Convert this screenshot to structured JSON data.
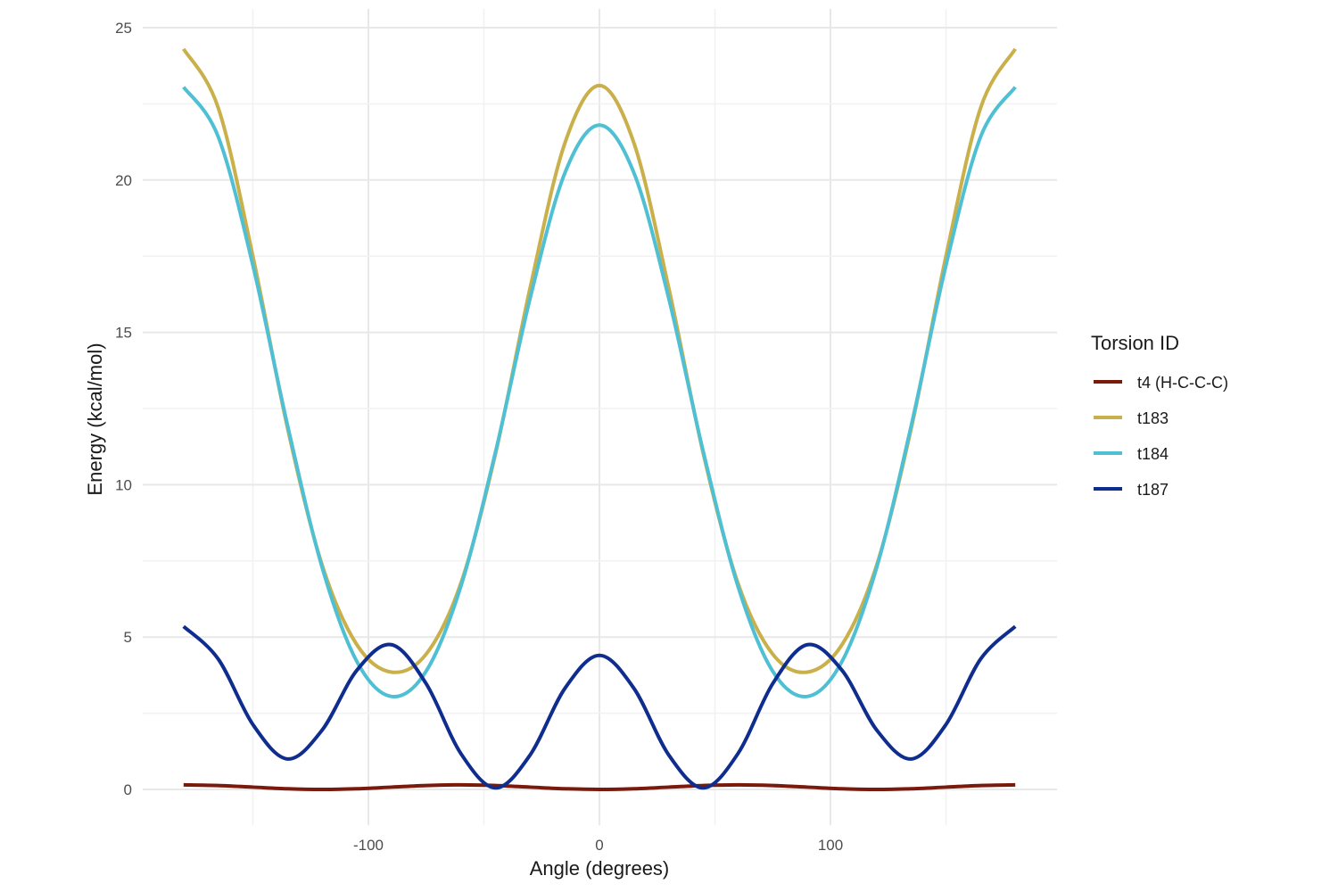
{
  "chart_data": {
    "type": "line",
    "title": "",
    "xlabel": "Angle (degrees)",
    "ylabel": "Energy (kcal/mol)",
    "xlim": [
      -180,
      180
    ],
    "ylim": [
      0,
      25
    ],
    "x_ticks": [
      -100,
      0,
      100
    ],
    "x_tick_labels": [
      "-100",
      "0",
      "100"
    ],
    "y_ticks": [
      0,
      5,
      10,
      15,
      20,
      25
    ],
    "y_tick_labels": [
      "0",
      "5",
      "10",
      "15",
      "20",
      "25"
    ],
    "grid": true,
    "legend": {
      "title": "Torsion ID",
      "placement": "right"
    },
    "x": [
      -180,
      -165,
      -150,
      -135,
      -120,
      -105,
      -90,
      -75,
      -60,
      -45,
      -30,
      -15,
      0,
      15,
      30,
      45,
      60,
      75,
      90,
      105,
      120,
      135,
      150,
      165,
      180
    ],
    "series": [
      {
        "name": "t4 (H-C-C-C)",
        "color": "#7a1a0c",
        "values": [
          0.15,
          0.128,
          0.075,
          0.022,
          0,
          0.022,
          0.075,
          0.128,
          0.15,
          0.128,
          0.075,
          0.022,
          0,
          0.022,
          0.075,
          0.128,
          0.15,
          0.128,
          0.075,
          0.022,
          0,
          0.022,
          0.075,
          0.128,
          0.15
        ]
      },
      {
        "name": "t183",
        "color": "#c9b04a",
        "values": [
          24.3,
          22.37,
          17.5,
          11.86,
          7.36,
          4.75,
          3.85,
          4.44,
          6.76,
          11.01,
          16.46,
          21.2,
          23.1,
          21.2,
          16.46,
          11.01,
          6.76,
          4.44,
          3.85,
          4.75,
          7.36,
          11.86,
          17.5,
          22.37,
          24.3
        ]
      },
      {
        "name": "t184",
        "color": "#4fbfd3",
        "values": [
          23.05,
          21.42,
          17.2,
          11.95,
          7.28,
          4.2,
          3.05,
          3.88,
          6.66,
          11.07,
          16.12,
          20.22,
          21.8,
          20.22,
          16.12,
          11.07,
          6.66,
          3.88,
          3.05,
          4.2,
          7.28,
          11.95,
          17.2,
          21.42,
          23.05
        ]
      },
      {
        "name": "t187",
        "color": "#0f2d8e",
        "values": [
          5.35,
          4.28,
          2.13,
          1.0,
          1.95,
          3.91,
          4.75,
          3.47,
          1.18,
          0.05,
          1.13,
          3.31,
          4.4,
          3.31,
          1.13,
          0.05,
          1.18,
          3.47,
          4.75,
          3.91,
          1.95,
          1.0,
          2.13,
          4.28,
          5.35
        ]
      }
    ]
  }
}
